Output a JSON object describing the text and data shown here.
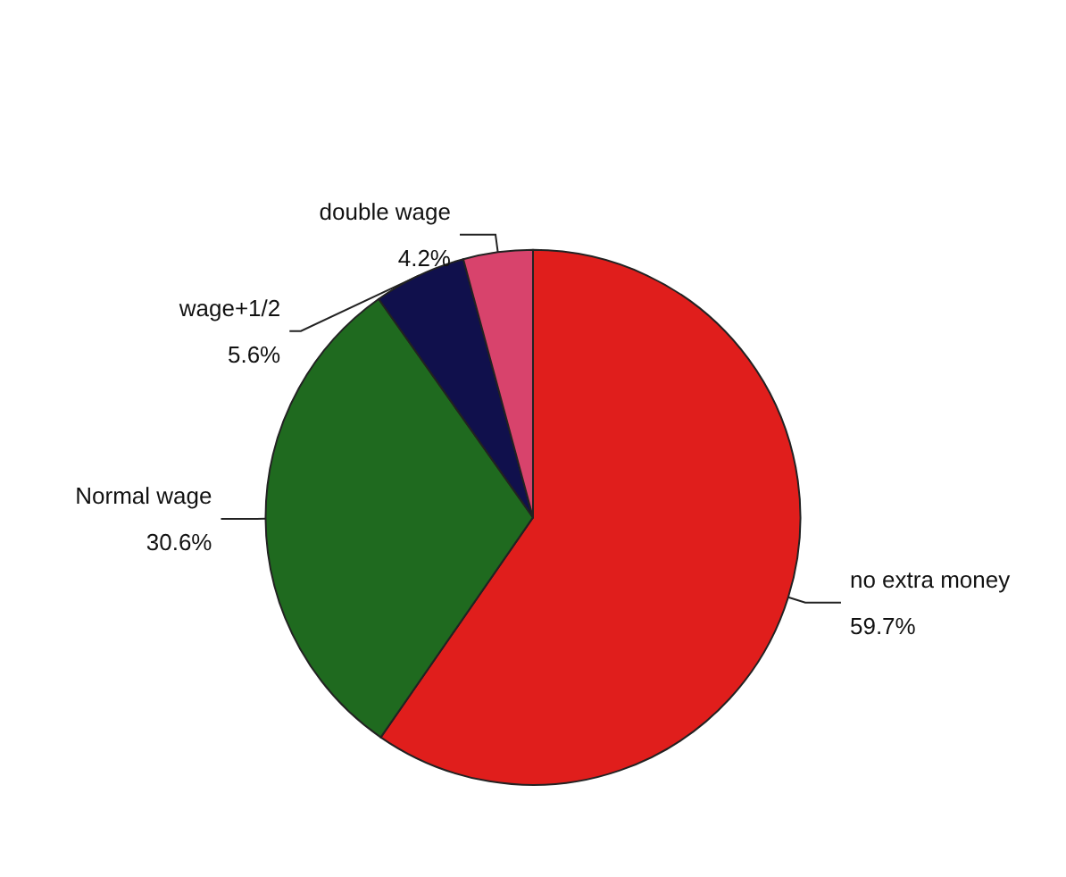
{
  "chart_data": {
    "type": "pie",
    "categories": [
      "no extra money",
      "Normal wage",
      "wage+1/2",
      "double wage"
    ],
    "values": [
      59.7,
      30.6,
      5.6,
      4.2
    ],
    "value_labels": [
      "59.7%",
      "30.6%",
      "5.6%",
      "4.2%"
    ],
    "colors": [
      "#e01e1c",
      "#1f6a1f",
      "#10104c",
      "#d8436c"
    ]
  }
}
